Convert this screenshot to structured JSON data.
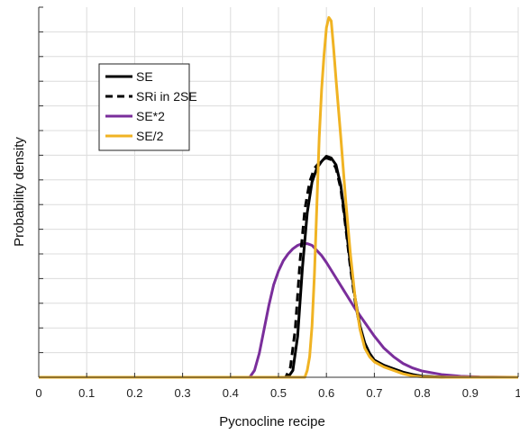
{
  "chart_data": {
    "type": "line",
    "title": "",
    "xlabel": "Pycnocline recipe",
    "ylabel": "Probability density",
    "xlim": [
      0,
      1
    ],
    "ylim": [
      0,
      1.08
    ],
    "grid": true,
    "legend_position": "top-left",
    "x_ticks": [
      "0",
      "0.1",
      "0.2",
      "0.3",
      "0.4",
      "0.5",
      "0.6",
      "0.7",
      "0.8",
      "0.9",
      "1"
    ],
    "y_ticks": [],
    "series": [
      {
        "name": "SE",
        "color": "#000000",
        "dash": "solid",
        "points": [
          [
            0,
            0
          ],
          [
            0.52,
            0
          ],
          [
            0.53,
            0.02
          ],
          [
            0.54,
            0.12
          ],
          [
            0.55,
            0.32
          ],
          [
            0.56,
            0.48
          ],
          [
            0.57,
            0.57
          ],
          [
            0.58,
            0.61
          ],
          [
            0.59,
            0.63
          ],
          [
            0.6,
            0.645
          ],
          [
            0.61,
            0.64
          ],
          [
            0.62,
            0.62
          ],
          [
            0.63,
            0.56
          ],
          [
            0.64,
            0.45
          ],
          [
            0.65,
            0.33
          ],
          [
            0.66,
            0.23
          ],
          [
            0.67,
            0.15
          ],
          [
            0.68,
            0.1
          ],
          [
            0.69,
            0.07
          ],
          [
            0.7,
            0.05
          ],
          [
            0.72,
            0.035
          ],
          [
            0.74,
            0.025
          ],
          [
            0.76,
            0.015
          ],
          [
            0.78,
            0.008
          ],
          [
            0.8,
            0.003
          ],
          [
            0.85,
            0
          ],
          [
            1,
            0
          ]
        ]
      },
      {
        "name": "SRi in 2SE",
        "color": "#000000",
        "dash": "dashed",
        "points": [
          [
            0,
            0
          ],
          [
            0.515,
            0
          ],
          [
            0.525,
            0.03
          ],
          [
            0.535,
            0.14
          ],
          [
            0.545,
            0.34
          ],
          [
            0.555,
            0.49
          ],
          [
            0.565,
            0.57
          ],
          [
            0.575,
            0.61
          ],
          [
            0.59,
            0.635
          ],
          [
            0.6,
            0.64
          ],
          [
            0.61,
            0.635
          ],
          [
            0.62,
            0.61
          ],
          [
            0.63,
            0.55
          ],
          [
            0.64,
            0.44
          ],
          [
            0.65,
            0.32
          ],
          [
            0.66,
            0.22
          ],
          [
            0.67,
            0.145
          ],
          [
            0.68,
            0.095
          ],
          [
            0.69,
            0.065
          ],
          [
            0.7,
            0.048
          ],
          [
            0.72,
            0.034
          ],
          [
            0.74,
            0.024
          ],
          [
            0.76,
            0.014
          ],
          [
            0.78,
            0.007
          ],
          [
            0.8,
            0.003
          ],
          [
            0.85,
            0
          ],
          [
            1,
            0
          ]
        ]
      },
      {
        "name": "SE*2",
        "color": "#7a2e9b",
        "dash": "solid",
        "points": [
          [
            0,
            0
          ],
          [
            0.44,
            0
          ],
          [
            0.45,
            0.02
          ],
          [
            0.46,
            0.07
          ],
          [
            0.47,
            0.14
          ],
          [
            0.48,
            0.21
          ],
          [
            0.49,
            0.27
          ],
          [
            0.5,
            0.31
          ],
          [
            0.51,
            0.34
          ],
          [
            0.52,
            0.36
          ],
          [
            0.53,
            0.375
          ],
          [
            0.54,
            0.385
          ],
          [
            0.55,
            0.39
          ],
          [
            0.56,
            0.39
          ],
          [
            0.57,
            0.385
          ],
          [
            0.58,
            0.37
          ],
          [
            0.59,
            0.355
          ],
          [
            0.6,
            0.335
          ],
          [
            0.62,
            0.29
          ],
          [
            0.64,
            0.245
          ],
          [
            0.66,
            0.2
          ],
          [
            0.68,
            0.16
          ],
          [
            0.7,
            0.12
          ],
          [
            0.72,
            0.085
          ],
          [
            0.74,
            0.06
          ],
          [
            0.76,
            0.04
          ],
          [
            0.78,
            0.027
          ],
          [
            0.8,
            0.018
          ],
          [
            0.84,
            0.008
          ],
          [
            0.88,
            0.003
          ],
          [
            0.92,
            0.001
          ],
          [
            1,
            0
          ]
        ]
      },
      {
        "name": "SE/2",
        "color": "#f0b323",
        "dash": "solid",
        "points": [
          [
            0,
            0
          ],
          [
            0.555,
            0
          ],
          [
            0.56,
            0.02
          ],
          [
            0.565,
            0.06
          ],
          [
            0.57,
            0.15
          ],
          [
            0.575,
            0.3
          ],
          [
            0.58,
            0.5
          ],
          [
            0.585,
            0.7
          ],
          [
            0.59,
            0.84
          ],
          [
            0.595,
            0.94
          ],
          [
            0.6,
            1.02
          ],
          [
            0.605,
            1.05
          ],
          [
            0.61,
            1.04
          ],
          [
            0.615,
            0.96
          ],
          [
            0.62,
            0.87
          ],
          [
            0.63,
            0.7
          ],
          [
            0.64,
            0.52
          ],
          [
            0.65,
            0.36
          ],
          [
            0.66,
            0.23
          ],
          [
            0.67,
            0.14
          ],
          [
            0.68,
            0.085
          ],
          [
            0.69,
            0.06
          ],
          [
            0.7,
            0.045
          ],
          [
            0.72,
            0.03
          ],
          [
            0.74,
            0.02
          ],
          [
            0.76,
            0.01
          ],
          [
            0.78,
            0.004
          ],
          [
            0.8,
            0.001
          ],
          [
            0.85,
            0
          ],
          [
            1,
            0
          ]
        ]
      }
    ]
  }
}
